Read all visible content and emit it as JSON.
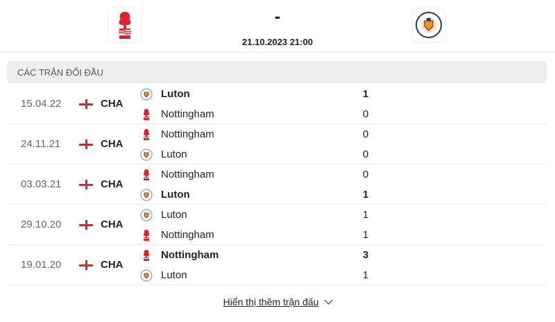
{
  "match": {
    "home_logo": "nottingham-forest-crest",
    "away_logo": "luton-town-crest",
    "score": "-",
    "datetime": "21.10.2023 21:00"
  },
  "section_title": "CÁC TRẬN ĐỐI ĐẦU",
  "colors": {
    "forest_red": "#e0202a",
    "luton_navy": "#1e3a6e",
    "luton_orange": "#f78f1e"
  },
  "matches": [
    {
      "date": "15.04.22",
      "competition": "CHA",
      "flag": "england",
      "home": {
        "team": "Luton",
        "score": "1",
        "winner": true
      },
      "away": {
        "team": "Nottingham",
        "score": "0",
        "winner": false
      }
    },
    {
      "date": "24.11.21",
      "competition": "CHA",
      "flag": "england",
      "home": {
        "team": "Nottingham",
        "score": "0",
        "winner": false
      },
      "away": {
        "team": "Luton",
        "score": "0",
        "winner": false
      }
    },
    {
      "date": "03.03.21",
      "competition": "CHA",
      "flag": "england",
      "home": {
        "team": "Nottingham",
        "score": "0",
        "winner": false
      },
      "away": {
        "team": "Luton",
        "score": "1",
        "winner": true
      }
    },
    {
      "date": "29.10.20",
      "competition": "CHA",
      "flag": "england",
      "home": {
        "team": "Luton",
        "score": "1",
        "winner": false
      },
      "away": {
        "team": "Nottingham",
        "score": "1",
        "winner": false
      }
    },
    {
      "date": "19.01.20",
      "competition": "CHA",
      "flag": "england",
      "home": {
        "team": "Nottingham",
        "score": "3",
        "winner": true
      },
      "away": {
        "team": "Luton",
        "score": "1",
        "winner": false
      }
    }
  ],
  "show_more": "Hiển thị thêm trận đấu"
}
